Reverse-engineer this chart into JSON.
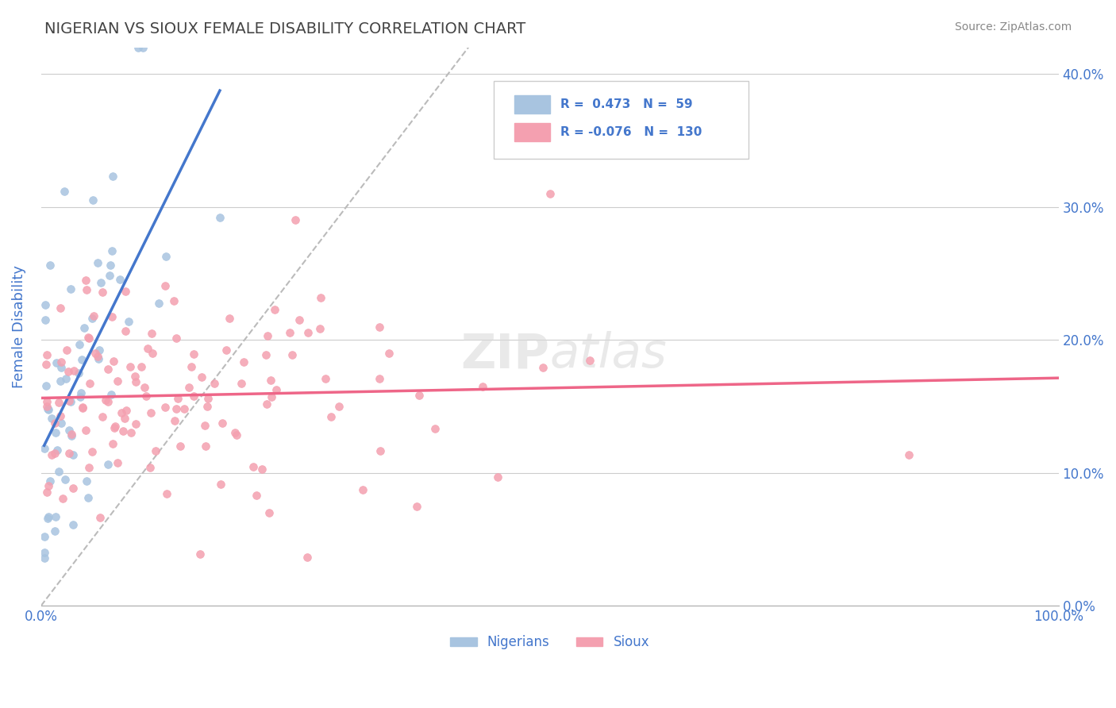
{
  "title": "NIGERIAN VS SIOUX FEMALE DISABILITY CORRELATION CHART",
  "source": "Source: ZipAtlas.com",
  "ylabel": "Female Disability",
  "legend_nigerians": "Nigerians",
  "legend_sioux": "Sioux",
  "R_nigerian": 0.473,
  "N_nigerian": 59,
  "R_sioux": -0.076,
  "N_sioux": 130,
  "nigerian_color": "#a8c4e0",
  "sioux_color": "#f4a0b0",
  "nigerian_line_color": "#4477cc",
  "sioux_line_color": "#ee6688",
  "identity_line_color": "#bbbbbb",
  "title_color": "#444444",
  "axis_label_color": "#4477cc",
  "legend_text_color": "#4477cc",
  "background_color": "#ffffff",
  "xlim": [
    0.0,
    1.0
  ],
  "ylim": [
    0.0,
    0.42
  ]
}
